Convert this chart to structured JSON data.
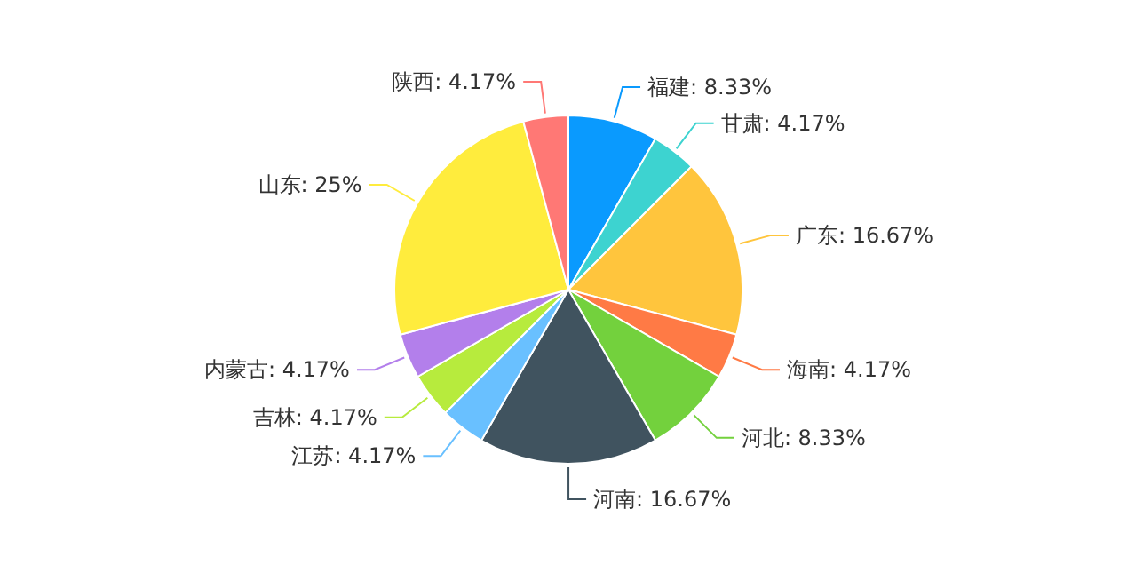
{
  "chart_data": {
    "type": "pie",
    "categories": [
      "福建",
      "甘肃",
      "广东",
      "海南",
      "河北",
      "河南",
      "江苏",
      "吉林",
      "内蒙古",
      "山东",
      "陕西"
    ],
    "values": [
      8.33,
      4.17,
      16.67,
      4.17,
      8.33,
      16.67,
      4.17,
      4.17,
      4.17,
      25,
      4.17
    ],
    "value_labels": [
      "8.33%",
      "4.17%",
      "16.67%",
      "4.17%",
      "8.33%",
      "16.67%",
      "4.17%",
      "4.17%",
      "4.17%",
      "25%",
      "4.17%"
    ],
    "colors": [
      "#0a9afe",
      "#3dd3d0",
      "#ffc53d",
      "#ff7a45",
      "#73d13d",
      "#40535f",
      "#69c0ff",
      "#b7eb3d",
      "#b37feb",
      "#ffec3d",
      "#ff7875"
    ]
  }
}
